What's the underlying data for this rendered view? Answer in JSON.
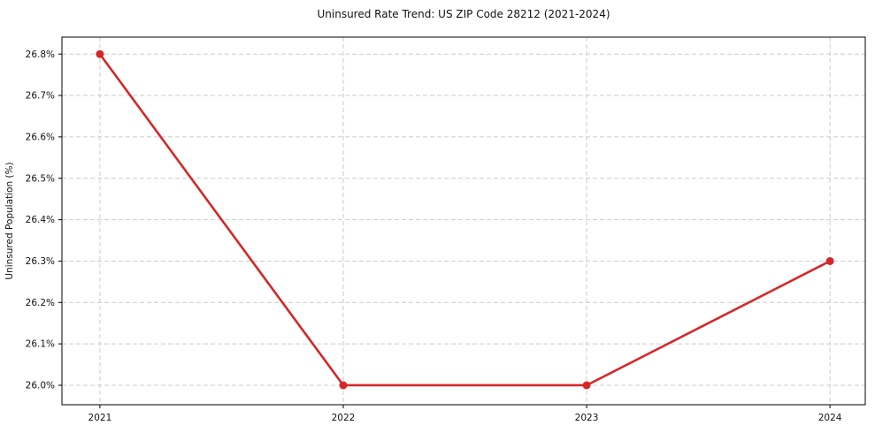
{
  "chart_data": {
    "type": "line",
    "title": "Uninsured Rate Trend: US ZIP Code 28212 (2021-2024)",
    "xlabel": "",
    "ylabel": "Uninsured Population (%)",
    "x": [
      2021,
      2022,
      2023,
      2024
    ],
    "x_tick_labels": [
      "2021",
      "2022",
      "2023",
      "2024"
    ],
    "values": [
      26.8,
      26.0,
      26.0,
      26.3
    ],
    "y_ticks": [
      26.0,
      26.1,
      26.2,
      26.3,
      26.4,
      26.5,
      26.6,
      26.7,
      26.8
    ],
    "y_tick_labels": [
      "26.0%",
      "26.1%",
      "26.2%",
      "26.3%",
      "26.4%",
      "26.5%",
      "26.6%",
      "26.7%",
      "26.8%"
    ],
    "xlim": [
      2020.844,
      2024.145
    ],
    "ylim": [
      25.953,
      26.841
    ],
    "grid": true,
    "grid_style": "dashed",
    "legend_position": "none",
    "line_color": "#d62728",
    "marker": "circle",
    "marker_size": 4.5,
    "line_width": 2.6,
    "grid_color": "#cccccc",
    "axis_color": "#000000",
    "background_color": "#ffffff"
  }
}
